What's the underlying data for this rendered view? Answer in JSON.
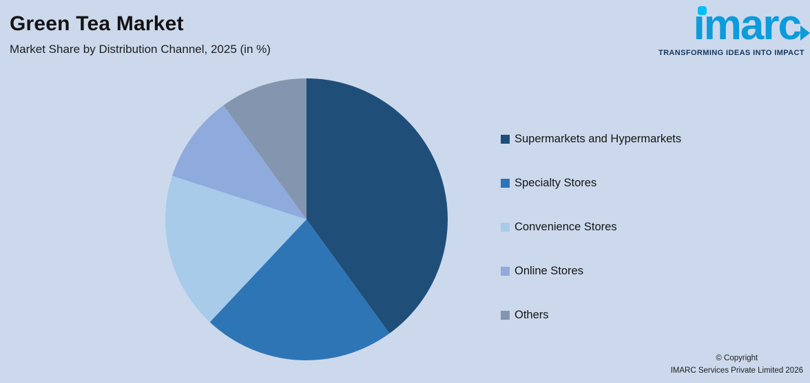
{
  "header": {
    "title": "Green Tea Market",
    "subtitle": "Market Share by Distribution Channel, 2025 (in %)"
  },
  "logo": {
    "text": "ımarc",
    "tagline": "TRANSFORMING IDEAS INTO IMPACT"
  },
  "footer": {
    "copyright_line1": "© Copyright",
    "copyright_line2": "IMARC Services Private Limited 2026"
  },
  "chart_data": {
    "type": "pie",
    "title": "Green Tea Market",
    "subtitle": "Market Share by Distribution Channel, 2025 (in %)",
    "categories": [
      "Supermarkets and Hypermarkets",
      "Specialty Stores",
      "Convenience Stores",
      "Online Stores",
      "Others"
    ],
    "values": [
      40,
      22,
      18,
      10,
      10
    ],
    "colors": [
      "#1f4e79",
      "#2e75b6",
      "#a7cbe9",
      "#8faadc",
      "#8496af"
    ],
    "start_angle_deg": 0,
    "direction": "clockwise",
    "legend_position": "right",
    "data_labels": false,
    "background": "#ccd9ec"
  }
}
